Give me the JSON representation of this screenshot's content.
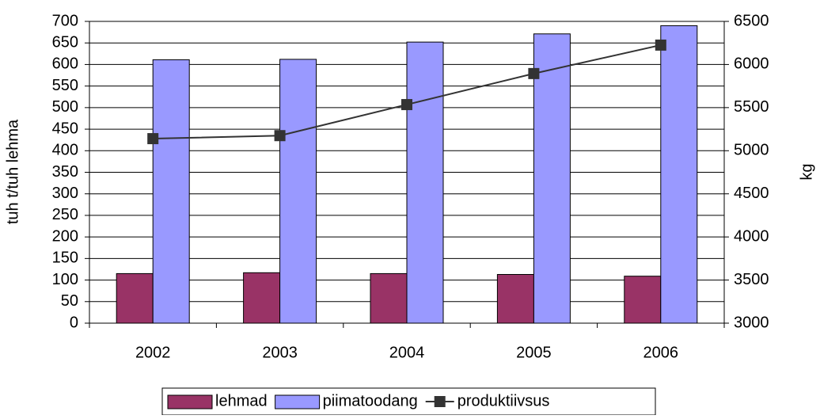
{
  "chart_data": {
    "type": "bar",
    "categories": [
      "2002",
      "2003",
      "2004",
      "2005",
      "2006"
    ],
    "series": [
      {
        "name": "lehmad",
        "color": "#993366",
        "values": [
          115,
          117,
          115,
          113,
          109
        ]
      },
      {
        "name": "piimatoodang",
        "color": "#9999ff",
        "values": [
          611,
          612,
          652,
          671,
          690
        ]
      },
      {
        "name": "produktiivsus",
        "type": "line",
        "axis": "y2",
        "color": "#333333",
        "values": [
          5140,
          5175,
          5535,
          5895,
          6225
        ]
      }
    ],
    "ylabel": "tuh t/tuh lehma",
    "y2label": "kg",
    "ylim": [
      0,
      700
    ],
    "yticks": [
      0,
      50,
      100,
      150,
      200,
      250,
      300,
      350,
      400,
      450,
      500,
      550,
      600,
      650,
      700
    ],
    "y2lim": [
      3000,
      6500
    ],
    "y2ticks": [
      3000,
      3500,
      4000,
      4500,
      5000,
      5500,
      6000,
      6500
    ],
    "grid": true,
    "legend": "bottom"
  }
}
